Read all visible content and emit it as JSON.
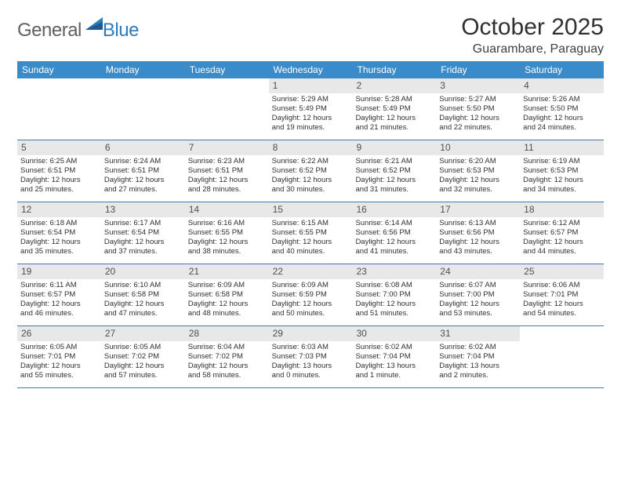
{
  "logo": {
    "text1": "General",
    "text2": "Blue"
  },
  "title": "October 2025",
  "location": "Guarambare, Paraguay",
  "colors": {
    "header_bg": "#3a8bc9",
    "row_border": "#3a7db0",
    "daynum_bg": "#e8e8e8",
    "logo_gray": "#606060",
    "logo_blue": "#2b7bbf"
  },
  "weekdays": [
    "Sunday",
    "Monday",
    "Tuesday",
    "Wednesday",
    "Thursday",
    "Friday",
    "Saturday"
  ],
  "weeks": [
    [
      {
        "n": "",
        "lines": []
      },
      {
        "n": "",
        "lines": []
      },
      {
        "n": "",
        "lines": []
      },
      {
        "n": "1",
        "lines": [
          "Sunrise: 5:29 AM",
          "Sunset: 5:49 PM",
          "Daylight: 12 hours",
          "and 19 minutes."
        ]
      },
      {
        "n": "2",
        "lines": [
          "Sunrise: 5:28 AM",
          "Sunset: 5:49 PM",
          "Daylight: 12 hours",
          "and 21 minutes."
        ]
      },
      {
        "n": "3",
        "lines": [
          "Sunrise: 5:27 AM",
          "Sunset: 5:50 PM",
          "Daylight: 12 hours",
          "and 22 minutes."
        ]
      },
      {
        "n": "4",
        "lines": [
          "Sunrise: 5:26 AM",
          "Sunset: 5:50 PM",
          "Daylight: 12 hours",
          "and 24 minutes."
        ]
      }
    ],
    [
      {
        "n": "5",
        "lines": [
          "Sunrise: 6:25 AM",
          "Sunset: 6:51 PM",
          "Daylight: 12 hours",
          "and 25 minutes."
        ]
      },
      {
        "n": "6",
        "lines": [
          "Sunrise: 6:24 AM",
          "Sunset: 6:51 PM",
          "Daylight: 12 hours",
          "and 27 minutes."
        ]
      },
      {
        "n": "7",
        "lines": [
          "Sunrise: 6:23 AM",
          "Sunset: 6:51 PM",
          "Daylight: 12 hours",
          "and 28 minutes."
        ]
      },
      {
        "n": "8",
        "lines": [
          "Sunrise: 6:22 AM",
          "Sunset: 6:52 PM",
          "Daylight: 12 hours",
          "and 30 minutes."
        ]
      },
      {
        "n": "9",
        "lines": [
          "Sunrise: 6:21 AM",
          "Sunset: 6:52 PM",
          "Daylight: 12 hours",
          "and 31 minutes."
        ]
      },
      {
        "n": "10",
        "lines": [
          "Sunrise: 6:20 AM",
          "Sunset: 6:53 PM",
          "Daylight: 12 hours",
          "and 32 minutes."
        ]
      },
      {
        "n": "11",
        "lines": [
          "Sunrise: 6:19 AM",
          "Sunset: 6:53 PM",
          "Daylight: 12 hours",
          "and 34 minutes."
        ]
      }
    ],
    [
      {
        "n": "12",
        "lines": [
          "Sunrise: 6:18 AM",
          "Sunset: 6:54 PM",
          "Daylight: 12 hours",
          "and 35 minutes."
        ]
      },
      {
        "n": "13",
        "lines": [
          "Sunrise: 6:17 AM",
          "Sunset: 6:54 PM",
          "Daylight: 12 hours",
          "and 37 minutes."
        ]
      },
      {
        "n": "14",
        "lines": [
          "Sunrise: 6:16 AM",
          "Sunset: 6:55 PM",
          "Daylight: 12 hours",
          "and 38 minutes."
        ]
      },
      {
        "n": "15",
        "lines": [
          "Sunrise: 6:15 AM",
          "Sunset: 6:55 PM",
          "Daylight: 12 hours",
          "and 40 minutes."
        ]
      },
      {
        "n": "16",
        "lines": [
          "Sunrise: 6:14 AM",
          "Sunset: 6:56 PM",
          "Daylight: 12 hours",
          "and 41 minutes."
        ]
      },
      {
        "n": "17",
        "lines": [
          "Sunrise: 6:13 AM",
          "Sunset: 6:56 PM",
          "Daylight: 12 hours",
          "and 43 minutes."
        ]
      },
      {
        "n": "18",
        "lines": [
          "Sunrise: 6:12 AM",
          "Sunset: 6:57 PM",
          "Daylight: 12 hours",
          "and 44 minutes."
        ]
      }
    ],
    [
      {
        "n": "19",
        "lines": [
          "Sunrise: 6:11 AM",
          "Sunset: 6:57 PM",
          "Daylight: 12 hours",
          "and 46 minutes."
        ]
      },
      {
        "n": "20",
        "lines": [
          "Sunrise: 6:10 AM",
          "Sunset: 6:58 PM",
          "Daylight: 12 hours",
          "and 47 minutes."
        ]
      },
      {
        "n": "21",
        "lines": [
          "Sunrise: 6:09 AM",
          "Sunset: 6:58 PM",
          "Daylight: 12 hours",
          "and 48 minutes."
        ]
      },
      {
        "n": "22",
        "lines": [
          "Sunrise: 6:09 AM",
          "Sunset: 6:59 PM",
          "Daylight: 12 hours",
          "and 50 minutes."
        ]
      },
      {
        "n": "23",
        "lines": [
          "Sunrise: 6:08 AM",
          "Sunset: 7:00 PM",
          "Daylight: 12 hours",
          "and 51 minutes."
        ]
      },
      {
        "n": "24",
        "lines": [
          "Sunrise: 6:07 AM",
          "Sunset: 7:00 PM",
          "Daylight: 12 hours",
          "and 53 minutes."
        ]
      },
      {
        "n": "25",
        "lines": [
          "Sunrise: 6:06 AM",
          "Sunset: 7:01 PM",
          "Daylight: 12 hours",
          "and 54 minutes."
        ]
      }
    ],
    [
      {
        "n": "26",
        "lines": [
          "Sunrise: 6:05 AM",
          "Sunset: 7:01 PM",
          "Daylight: 12 hours",
          "and 55 minutes."
        ]
      },
      {
        "n": "27",
        "lines": [
          "Sunrise: 6:05 AM",
          "Sunset: 7:02 PM",
          "Daylight: 12 hours",
          "and 57 minutes."
        ]
      },
      {
        "n": "28",
        "lines": [
          "Sunrise: 6:04 AM",
          "Sunset: 7:02 PM",
          "Daylight: 12 hours",
          "and 58 minutes."
        ]
      },
      {
        "n": "29",
        "lines": [
          "Sunrise: 6:03 AM",
          "Sunset: 7:03 PM",
          "Daylight: 13 hours",
          "and 0 minutes."
        ]
      },
      {
        "n": "30",
        "lines": [
          "Sunrise: 6:02 AM",
          "Sunset: 7:04 PM",
          "Daylight: 13 hours",
          "and 1 minute."
        ]
      },
      {
        "n": "31",
        "lines": [
          "Sunrise: 6:02 AM",
          "Sunset: 7:04 PM",
          "Daylight: 13 hours",
          "and 2 minutes."
        ]
      },
      {
        "n": "",
        "lines": []
      }
    ]
  ]
}
